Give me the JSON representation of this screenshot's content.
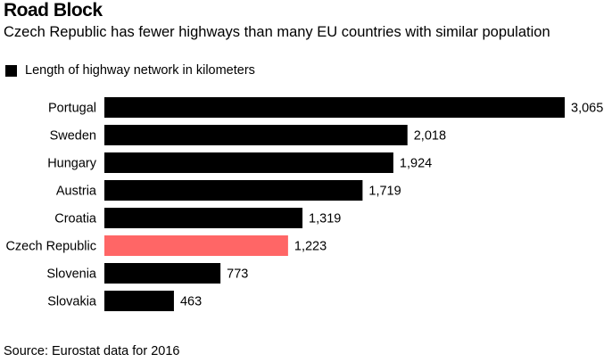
{
  "chart_data": {
    "type": "bar",
    "orientation": "horizontal",
    "title": "Road Block",
    "subtitle": "Czech Republic has fewer highways than many EU countries with similar population",
    "categories": [
      "Portugal",
      "Sweden",
      "Hungary",
      "Austria",
      "Croatia",
      "Czech Republic",
      "Slovenia",
      "Slovakia"
    ],
    "series": [
      {
        "name": "Length of highway network in kilometers",
        "values": [
          3065,
          2018,
          1924,
          1719,
          1319,
          1223,
          773,
          463
        ],
        "value_labels": [
          "3,065",
          "2,018",
          "1,924",
          "1,719",
          "1,319",
          "1,223",
          "773",
          "463"
        ]
      }
    ],
    "colors": {
      "bar": "#000000",
      "highlight": "#ff6666"
    },
    "highlight_category": "Czech Republic",
    "legend_position": "top-left",
    "grid": false,
    "source": "Source: Eurostat data for 2016"
  }
}
